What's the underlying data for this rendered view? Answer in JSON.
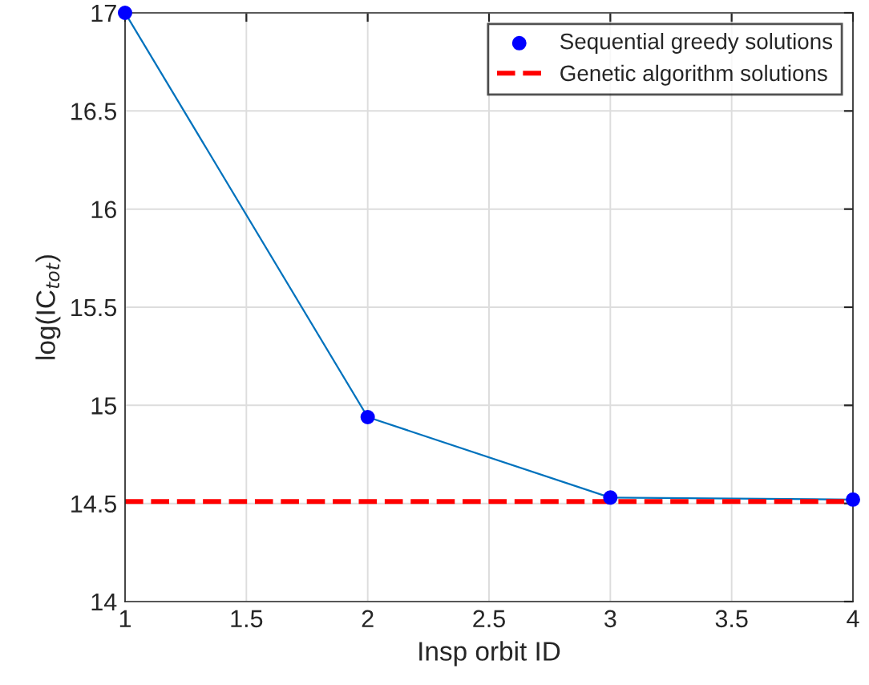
{
  "chart_data": {
    "type": "scatter",
    "xlabel": "Insp orbit ID",
    "ylabel": "log(IC$_{tot}$)",
    "x": [
      1,
      2,
      3,
      4
    ],
    "series": [
      {
        "type": "line",
        "color": "#0072bd",
        "values": [
          17.0,
          14.94,
          14.53,
          14.52
        ]
      },
      {
        "name": "Sequential greedy solutions",
        "color": "#0000ff",
        "marker": "circle",
        "values": [
          17.0,
          14.94,
          14.53,
          14.52
        ]
      }
    ],
    "ref_lines": [
      {
        "axis": "y",
        "value": 14.51,
        "label": "Genetic algorithm solutions",
        "color": "#ff0000",
        "line_style": "dashed"
      }
    ],
    "xlim": [
      1,
      4
    ],
    "xticks": [
      1,
      1.5,
      2,
      2.5,
      3,
      3.5,
      4
    ],
    "ylim": [
      14,
      17
    ],
    "yticks": [
      14,
      14.5,
      15,
      15.5,
      16,
      16.5,
      17
    ],
    "grid": true,
    "legend": "top right"
  }
}
